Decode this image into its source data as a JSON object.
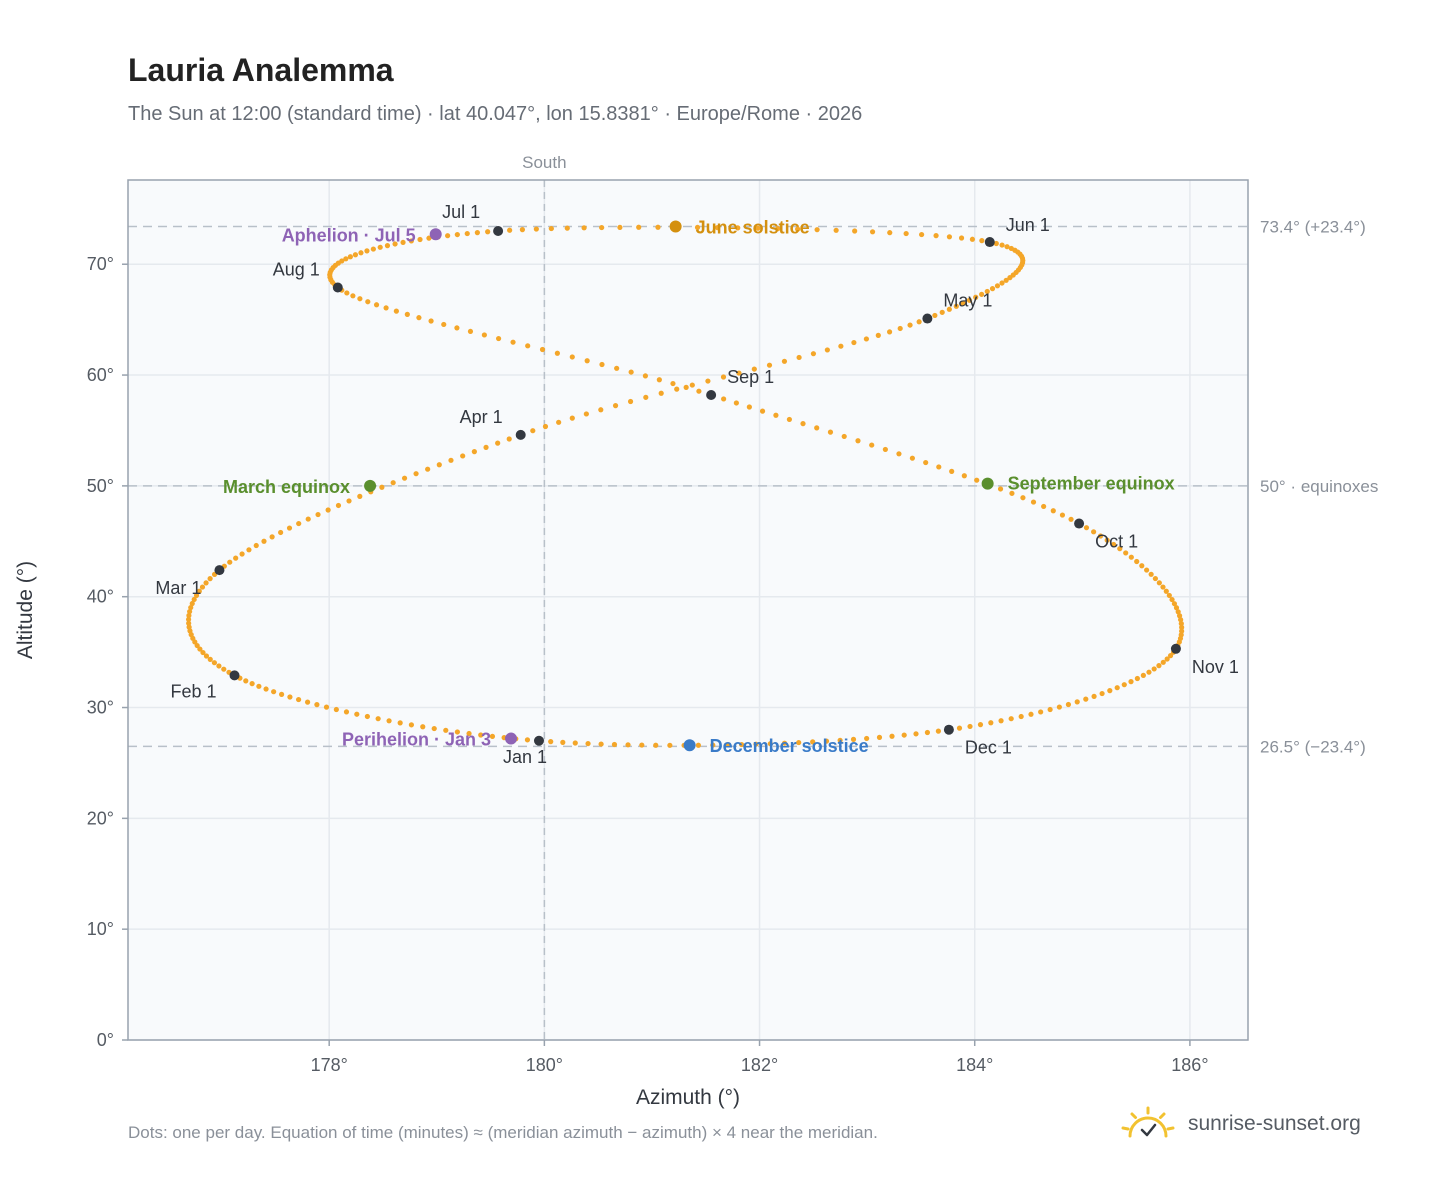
{
  "header": {
    "title": "Lauria Analemma",
    "subtitle": "The Sun at 12:00 (standard time) · lat 40.047°, lon 15.8381° · Europe/Rome · 2026"
  },
  "footer": {
    "note": "Dots: one per day. Equation of time (minutes) ≈ (meridian azimuth − azimuth) × 4 near the meridian.",
    "brand": "sunrise-sunset.org"
  },
  "colors": {
    "path": "#f4a629",
    "month_marker": "#333840",
    "solstice_june": "#d4900f",
    "solstice_december": "#3a7bc8",
    "equinox": "#5a8f2e",
    "apsis": "#8e63b5",
    "reference_line": "#b8c0c9",
    "plot_background": "#f8fafc",
    "grid": "#e5e9ee",
    "border": "#98a2ae",
    "logo": "#f2c230"
  },
  "chart_data": {
    "type": "scatter",
    "xlabel": "Azimuth (°)",
    "ylabel": "Altitude (°)",
    "xlim": [
      176.13,
      186.54
    ],
    "ylim": [
      0,
      77.6
    ],
    "x_ticks": [
      178,
      180,
      182,
      184,
      186
    ],
    "x_tick_labels": [
      "178°",
      "180°",
      "182°",
      "184°",
      "186°"
    ],
    "y_ticks": [
      0,
      10,
      20,
      30,
      40,
      50,
      60,
      70
    ],
    "y_tick_labels": [
      "0°",
      "10°",
      "20°",
      "30°",
      "40°",
      "50°",
      "60°",
      "70°"
    ],
    "grid": true,
    "reference_lines": {
      "vertical": [
        {
          "x": 180,
          "label": "South"
        }
      ],
      "horizontal": [
        {
          "y": 73.4,
          "label": "73.4° (+23.4°)"
        },
        {
          "y": 50,
          "label": "50° · equinoxes"
        },
        {
          "y": 26.5,
          "label": "26.5° (−23.4°)"
        }
      ]
    },
    "path_anchors": {
      "note": "daily sun positions interpolated between these day-of-year anchors",
      "days": [
        1,
        32,
        60,
        91,
        121,
        152,
        182,
        213,
        244,
        274,
        305,
        335,
        365
      ],
      "azimuth": [
        179.95,
        177.12,
        176.98,
        179.78,
        183.56,
        184.14,
        179.57,
        178.08,
        181.55,
        184.97,
        185.87,
        183.76,
        180.06
      ],
      "altitude": [
        27.0,
        32.9,
        42.4,
        54.6,
        65.1,
        72.0,
        73.0,
        67.9,
        58.2,
        46.6,
        35.3,
        28.0,
        26.9
      ]
    },
    "month_markers": [
      {
        "label": "Jan 1",
        "az": 179.95,
        "alt": 27.0
      },
      {
        "label": "Feb 1",
        "az": 177.12,
        "alt": 32.9
      },
      {
        "label": "Mar 1",
        "az": 176.98,
        "alt": 42.4
      },
      {
        "label": "Apr 1",
        "az": 179.78,
        "alt": 54.6
      },
      {
        "label": "May 1",
        "az": 183.56,
        "alt": 65.1
      },
      {
        "label": "Jun 1",
        "az": 184.14,
        "alt": 72.0
      },
      {
        "label": "Jul 1",
        "az": 179.57,
        "alt": 73.0
      },
      {
        "label": "Aug 1",
        "az": 178.08,
        "alt": 67.9
      },
      {
        "label": "Sep 1",
        "az": 181.55,
        "alt": 58.2
      },
      {
        "label": "Oct 1",
        "az": 184.97,
        "alt": 46.6
      },
      {
        "label": "Nov 1",
        "az": 185.87,
        "alt": 35.3
      },
      {
        "label": "Dec 1",
        "az": 183.76,
        "alt": 28.0
      }
    ],
    "events": [
      {
        "label": "June solstice",
        "az": 181.22,
        "alt": 73.4,
        "color": "#d4900f"
      },
      {
        "label": "December solstice",
        "az": 181.35,
        "alt": 26.6,
        "color": "#3a7bc8"
      },
      {
        "label": "March equinox",
        "az": 178.38,
        "alt": 50.0,
        "color": "#5a8f2e"
      },
      {
        "label": "September equinox",
        "az": 184.12,
        "alt": 50.2,
        "color": "#5a8f2e"
      },
      {
        "label": "Aphelion · Jul 5",
        "az": 178.99,
        "alt": 72.7,
        "color": "#8e63b5"
      },
      {
        "label": "Perihelion · Jan 3",
        "az": 179.69,
        "alt": 27.2,
        "color": "#8e63b5"
      }
    ]
  }
}
